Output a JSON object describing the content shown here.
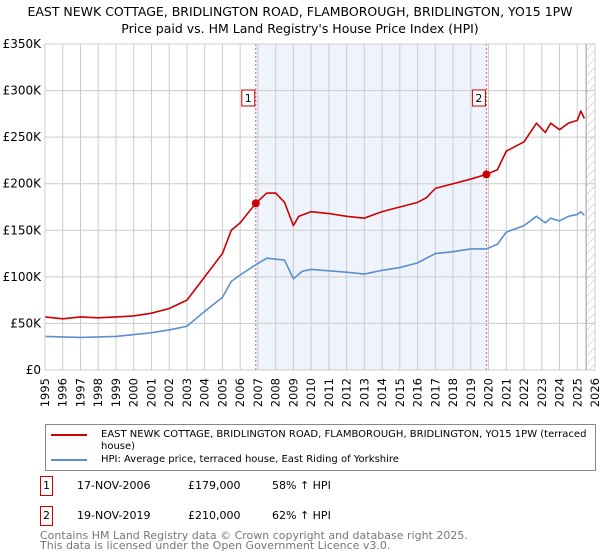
{
  "title": "EAST NEWK COTTAGE, BRIDLINGTON ROAD, FLAMBOROUGH, BRIDLINGTON, YO15 1PW",
  "subtitle": "Price paid vs. HM Land Registry's House Price Index (HPI)",
  "colors": {
    "property": "#cc0000",
    "hpi": "#5b8fd0",
    "shade": "#eef3fc",
    "grid": "#cccccc"
  },
  "chart_data": {
    "type": "line",
    "title": "EAST NEWK COTTAGE, BRIDLINGTON ROAD, FLAMBOROUGH, BRIDLINGTON, YO15 1PW",
    "subtitle": "Price paid vs. HM Land Registry's House Price Index (HPI)",
    "xlim": [
      1995,
      2026
    ],
    "ylim": [
      0,
      350000
    ],
    "x_ticks": [
      "1995",
      "1996",
      "1997",
      "1998",
      "1999",
      "2000",
      "2001",
      "2002",
      "2003",
      "2004",
      "2005",
      "2006",
      "2007",
      "2008",
      "2009",
      "2010",
      "2011",
      "2012",
      "2013",
      "2014",
      "2015",
      "2016",
      "2017",
      "2018",
      "2019",
      "2020",
      "2021",
      "2022",
      "2023",
      "2024",
      "2025",
      "2026"
    ],
    "y_ticks": [
      {
        "v": 0,
        "label": "£0"
      },
      {
        "v": 50000,
        "label": "£50K"
      },
      {
        "v": 100000,
        "label": "£100K"
      },
      {
        "v": 150000,
        "label": "£150K"
      },
      {
        "v": 200000,
        "label": "£200K"
      },
      {
        "v": 250000,
        "label": "£250K"
      },
      {
        "v": 300000,
        "label": "£300K"
      },
      {
        "v": 350000,
        "label": "£350K"
      }
    ],
    "grid": true,
    "shaded_range": [
      2006.88,
      2019.88
    ],
    "hatched_from": 2025.5,
    "series": [
      {
        "name": "EAST NEWK COTTAGE, BRIDLINGTON ROAD, FLAMBOROUGH, BRIDLINGTON, YO15 1PW (terraced house)",
        "x": [
          1995,
          1996,
          1997,
          1998,
          1999,
          2000,
          2001,
          2002,
          2003,
          2004,
          2005,
          2005.5,
          2006,
          2006.88,
          2007.5,
          2008,
          2008.5,
          2009,
          2009.3,
          2010,
          2011,
          2012,
          2013,
          2014,
          2015,
          2016,
          2016.5,
          2017,
          2018,
          2019,
          2019.88,
          2020.5,
          2021,
          2022,
          2022.7,
          2023.2,
          2023.5,
          2024,
          2024.5,
          2025,
          2025.2,
          2025.4
        ],
        "y": [
          57000,
          55000,
          57000,
          56000,
          57000,
          58000,
          61000,
          66000,
          75000,
          100000,
          125000,
          150000,
          158000,
          179000,
          190000,
          190000,
          180000,
          155000,
          165000,
          170000,
          168000,
          165000,
          163000,
          170000,
          175000,
          180000,
          185000,
          195000,
          200000,
          205000,
          210000,
          215000,
          235000,
          245000,
          265000,
          255000,
          265000,
          258000,
          265000,
          268000,
          278000,
          270000
        ]
      },
      {
        "name": "HPI: Average price, terraced house, East Riding of Yorkshire",
        "x": [
          1995,
          1997,
          1999,
          2000,
          2001,
          2002,
          2003,
          2004,
          2005,
          2005.5,
          2006,
          2006.88,
          2007.5,
          2008.5,
          2009,
          2009.5,
          2010,
          2012,
          2013,
          2014,
          2015,
          2016,
          2017,
          2018,
          2019,
          2019.88,
          2020.5,
          2021,
          2022,
          2022.7,
          2023.2,
          2023.5,
          2024,
          2024.5,
          2025,
          2025.2,
          2025.4
        ],
        "y": [
          36000,
          35000,
          36000,
          38000,
          40000,
          43000,
          47000,
          63000,
          78000,
          95000,
          102000,
          113000,
          120000,
          118000,
          98000,
          106000,
          108000,
          105000,
          103000,
          107000,
          110000,
          115000,
          125000,
          127000,
          130000,
          130000,
          135000,
          148000,
          155000,
          165000,
          158000,
          163000,
          160000,
          165000,
          167000,
          170000,
          166000
        ]
      }
    ],
    "sales": [
      {
        "label": "1",
        "x": 2006.88,
        "y": 179000
      },
      {
        "label": "2",
        "x": 2019.88,
        "y": 210000
      }
    ]
  },
  "legend": {
    "property": "EAST NEWK COTTAGE, BRIDLINGTON ROAD, FLAMBOROUGH, BRIDLINGTON, YO15 1PW (terraced house)",
    "hpi": "HPI: Average price, terraced house, East Riding of Yorkshire"
  },
  "transactions": [
    {
      "num": "1",
      "date": "17-NOV-2006",
      "price": "£179,000",
      "delta": "58% ↑ HPI"
    },
    {
      "num": "2",
      "date": "19-NOV-2019",
      "price": "£210,000",
      "delta": "62% ↑ HPI"
    }
  ],
  "footer": {
    "line1": "Contains HM Land Registry data © Crown copyright and database right 2025.",
    "line2": "This data is licensed under the Open Government Licence v3.0."
  }
}
